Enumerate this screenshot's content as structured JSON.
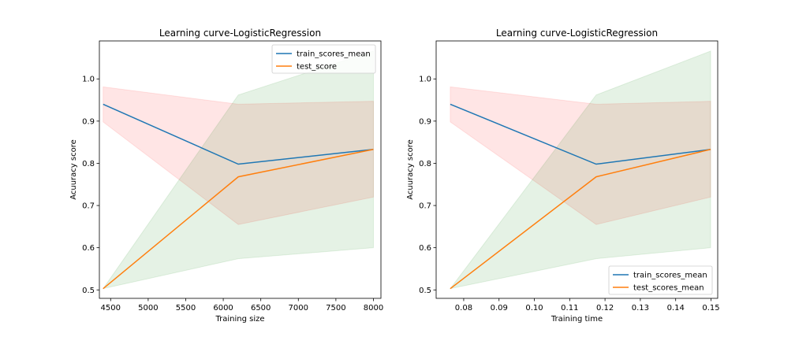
{
  "chart_data": [
    {
      "type": "line",
      "title": "Learning curve-LogisticRegression",
      "xlabel": "Training size",
      "ylabel": "Acuuracy score",
      "xlim": [
        4350,
        8100
      ],
      "ylim": [
        0.48,
        1.09
      ],
      "xticks": [
        4500,
        5000,
        5500,
        6000,
        6500,
        7000,
        7500,
        8000
      ],
      "xtick_labels": [
        "4500",
        "5000",
        "5500",
        "6000",
        "6500",
        "7000",
        "7500",
        "8000"
      ],
      "yticks": [
        0.5,
        0.6,
        0.7,
        0.8,
        0.9,
        1.0
      ],
      "ytick_labels": [
        "0.5",
        "0.6",
        "0.7",
        "0.8",
        "0.9",
        "1.0"
      ],
      "legend_position": "upper right",
      "grid": false,
      "series": [
        {
          "name": "train_scores_mean",
          "color": "#1f77b4",
          "x": [
            4400,
            6200,
            8000
          ],
          "y": [
            0.94,
            0.798,
            0.833
          ],
          "band_lower": [
            0.898,
            0.655,
            0.72
          ],
          "band_upper": [
            0.981,
            0.94,
            0.947
          ],
          "band_color": "#ff0000"
        },
        {
          "name": "test_score",
          "color": "#ff7f0e",
          "x": [
            4400,
            6200,
            8000
          ],
          "y": [
            0.503,
            0.768,
            0.833
          ],
          "band_lower": [
            0.503,
            0.574,
            0.6
          ],
          "band_upper": [
            0.503,
            0.962,
            1.066
          ],
          "band_color": "#008000"
        }
      ]
    },
    {
      "type": "line",
      "title": "Learning curve-LogisticRegression",
      "xlabel": "Training time",
      "ylabel": "Acuuracy score",
      "xlim": [
        0.0722,
        0.1519
      ],
      "ylim": [
        0.48,
        1.09
      ],
      "xticks": [
        0.08,
        0.09,
        0.1,
        0.11,
        0.12,
        0.13,
        0.14,
        0.15
      ],
      "xtick_labels": [
        "0.08",
        "0.09",
        "0.10",
        "0.11",
        "0.12",
        "0.13",
        "0.14",
        "0.15"
      ],
      "yticks": [
        0.5,
        0.6,
        0.7,
        0.8,
        0.9,
        1.0
      ],
      "ytick_labels": [
        "0.5",
        "0.6",
        "0.7",
        "0.8",
        "0.9",
        "1.0"
      ],
      "legend_position": "lower right",
      "grid": false,
      "series": [
        {
          "name": "train_scores_mean",
          "color": "#1f77b4",
          "x": [
            0.0762,
            0.1175,
            0.1499
          ],
          "y": [
            0.94,
            0.798,
            0.833
          ],
          "band_lower": [
            0.898,
            0.655,
            0.72
          ],
          "band_upper": [
            0.981,
            0.94,
            0.947
          ],
          "band_color": "#ff0000"
        },
        {
          "name": "test_scores_mean",
          "color": "#ff7f0e",
          "x": [
            0.0762,
            0.1175,
            0.1499
          ],
          "y": [
            0.503,
            0.768,
            0.833
          ],
          "band_lower": [
            0.503,
            0.574,
            0.6
          ],
          "band_upper": [
            0.503,
            0.962,
            1.066
          ],
          "band_color": "#008000"
        }
      ]
    }
  ]
}
